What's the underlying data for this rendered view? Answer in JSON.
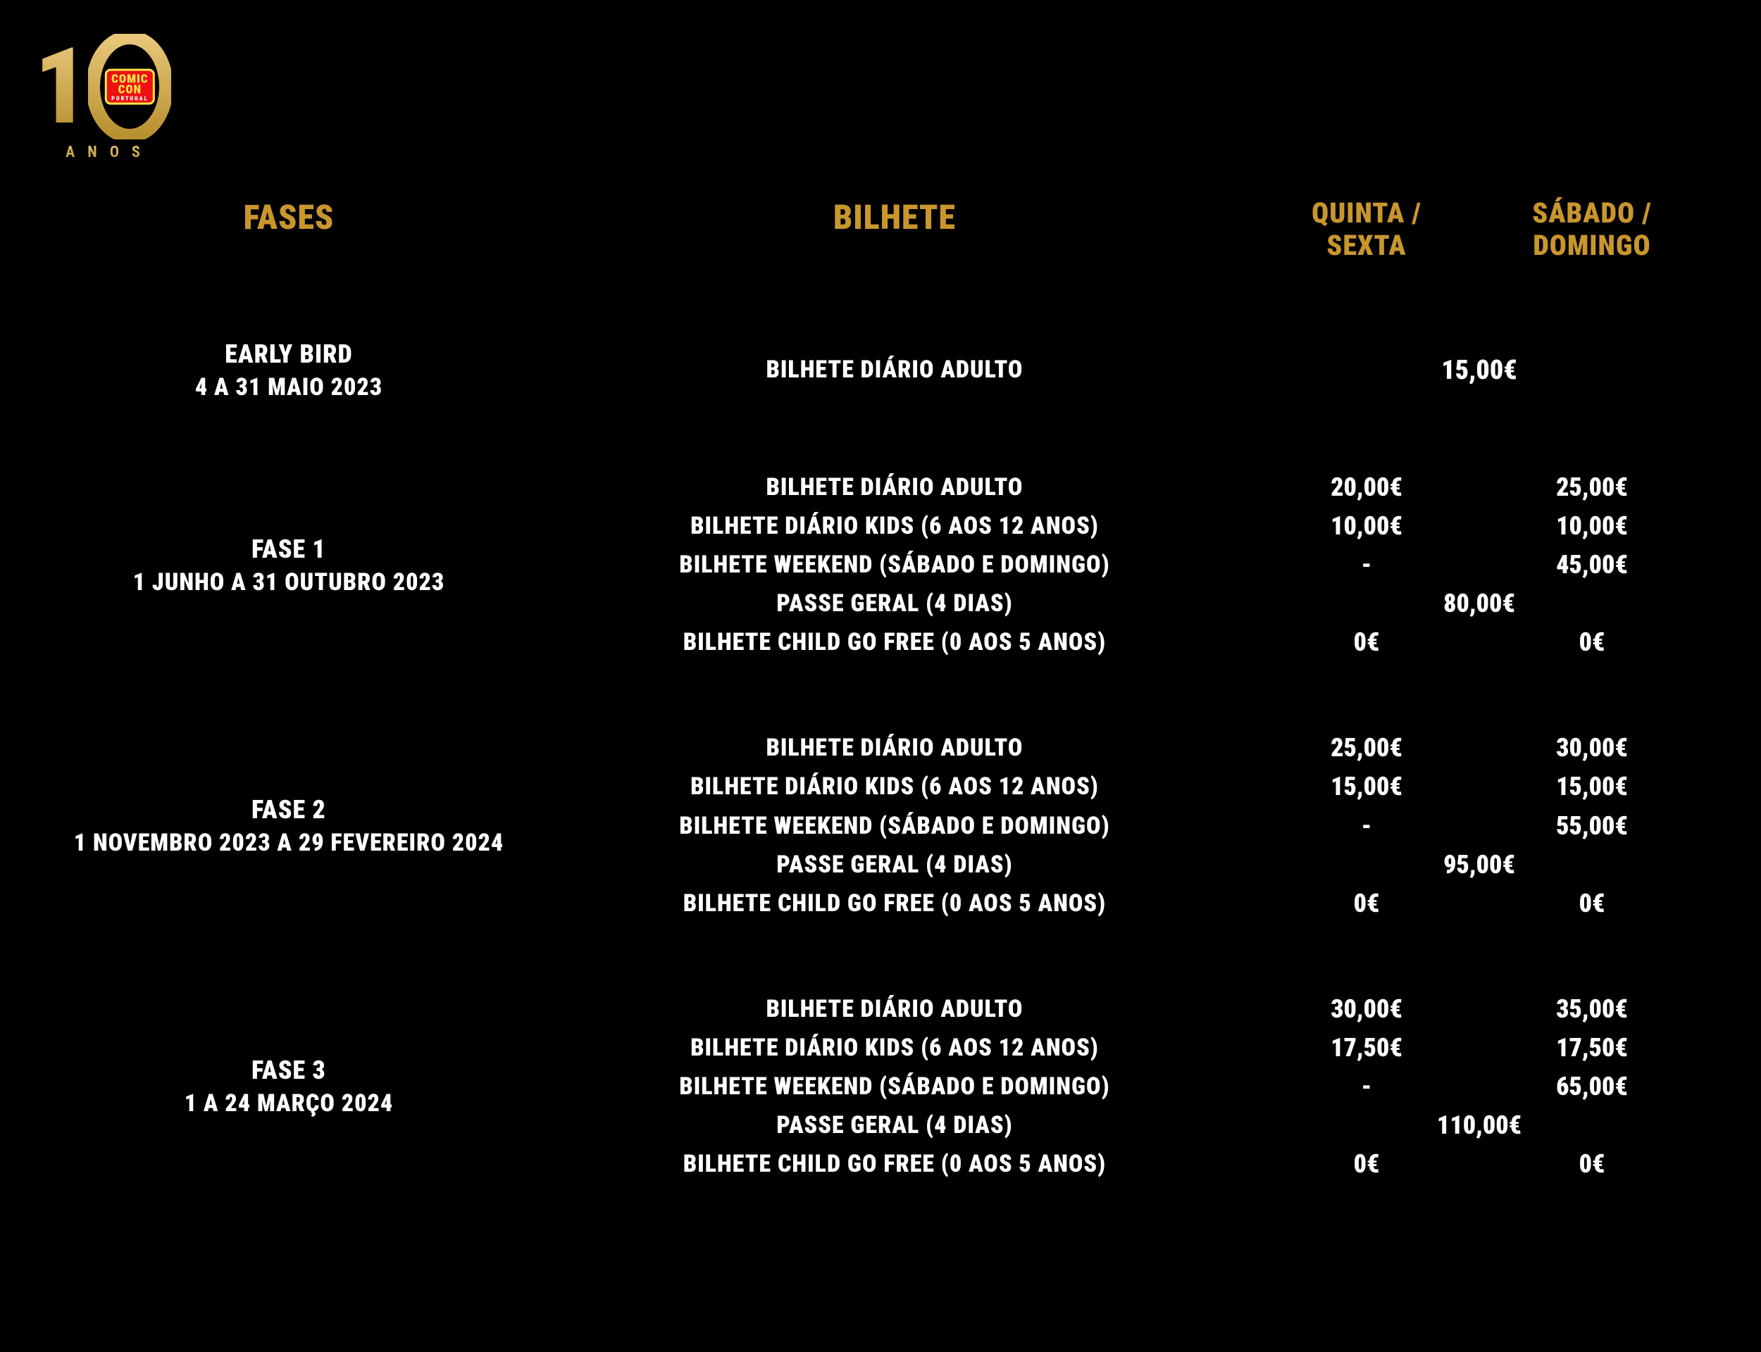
{
  "colors": {
    "bg": "#000000",
    "text": "#ffffff",
    "gold": "#c9962e",
    "gold_light": "#e8c77a",
    "gold_dark": "#b8902f",
    "badge_red": "#ee1111",
    "badge_yellow": "#ffe54a"
  },
  "logo": {
    "badge_text": "COMIC CON",
    "badge_sub": "PORTUGAL",
    "anos": "ANOS"
  },
  "headers": {
    "fases": "FASES",
    "bilhete": "BILHETE",
    "col1_line1": "QUINTA /",
    "col1_line2": "SEXTA",
    "col2_line1": "SÁBADO /",
    "col2_line2": "DOMINGO"
  },
  "sections": [
    {
      "fase_title": "EARLY BIRD",
      "fase_sub": "4 A 31 MAIO 2023",
      "rows": [
        {
          "label": "BILHETE DIÁRIO ADULTO",
          "merged": "15,00€"
        }
      ]
    },
    {
      "fase_title": "FASE 1",
      "fase_sub": "1 JUNHO A 31 OUTUBRO 2023",
      "rows": [
        {
          "label": "BILHETE DIÁRIO ADULTO",
          "p1": "20,00€",
          "p2": "25,00€"
        },
        {
          "label": "BILHETE DIÁRIO KIDS (6 AOS 12 ANOS)",
          "p1": "10,00€",
          "p2": "10,00€"
        },
        {
          "label": "BILHETE WEEKEND (SÁBADO E DOMINGO)",
          "p1": "-",
          "p2": "45,00€"
        },
        {
          "label": "PASSE GERAL (4 DIAS)",
          "merged": "80,00€"
        },
        {
          "label": "BILHETE CHILD GO FREE (0 AOS 5 ANOS)",
          "p1": "0€",
          "p2": "0€"
        }
      ]
    },
    {
      "fase_title": "FASE 2",
      "fase_sub": "1 NOVEMBRO 2023 A 29 FEVEREIRO 2024",
      "rows": [
        {
          "label": "BILHETE DIÁRIO ADULTO",
          "p1": "25,00€",
          "p2": "30,00€"
        },
        {
          "label": "BILHETE DIÁRIO KIDS (6 AOS 12 ANOS)",
          "p1": "15,00€",
          "p2": "15,00€"
        },
        {
          "label": "BILHETE WEEKEND (SÁBADO E DOMINGO)",
          "p1": "-",
          "p2": "55,00€"
        },
        {
          "label": "PASSE GERAL (4 DIAS)",
          "merged": "95,00€"
        },
        {
          "label": "BILHETE CHILD GO FREE (0 AOS 5 ANOS)",
          "p1": "0€",
          "p2": "0€"
        }
      ]
    },
    {
      "fase_title": "FASE 3",
      "fase_sub": "1 A 24 MARÇO 2024",
      "rows": [
        {
          "label": "BILHETE DIÁRIO ADULTO",
          "p1": "30,00€",
          "p2": "35,00€"
        },
        {
          "label": "BILHETE DIÁRIO KIDS (6 AOS 12 ANOS)",
          "p1": "17,50€",
          "p2": "17,50€"
        },
        {
          "label": "BILHETE WEEKEND (SÁBADO E DOMINGO)",
          "p1": "-",
          "p2": "65,00€"
        },
        {
          "label": "PASSE GERAL (4 DIAS)",
          "merged": "110,00€"
        },
        {
          "label": "BILHETE CHILD GO FREE (0 AOS 5 ANOS)",
          "p1": "0€",
          "p2": "0€"
        }
      ]
    }
  ]
}
